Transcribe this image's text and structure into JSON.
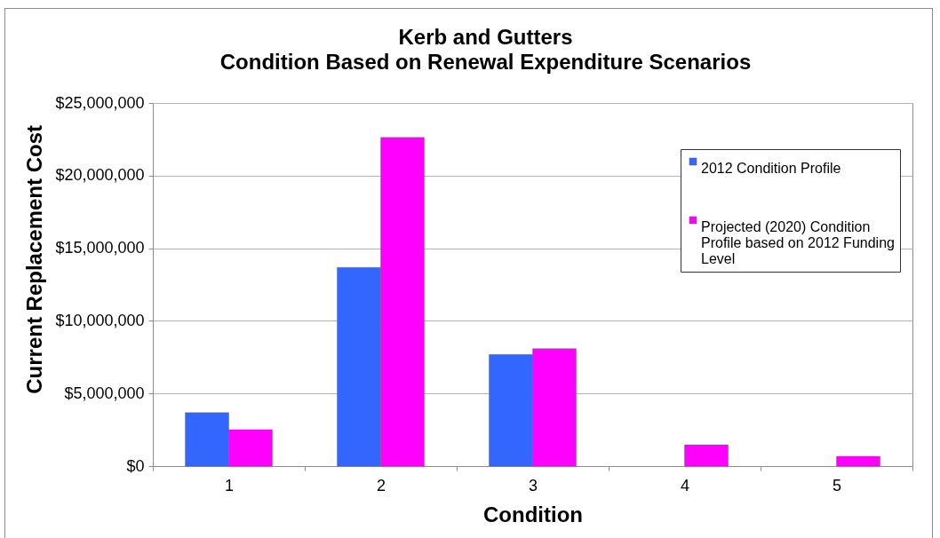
{
  "chart_data": {
    "type": "bar",
    "title": "Kerb and Gutters",
    "subtitle": "Condition Based on Renewal Expenditure Scenarios",
    "xlabel": "Condition",
    "ylabel": "Current Replacement Cost",
    "categories": [
      "1",
      "2",
      "3",
      "4",
      "5"
    ],
    "series": [
      {
        "name": "2012 Condition Profile",
        "color": "#3366ff",
        "values": [
          3680000,
          13680000,
          7680000,
          null,
          null
        ]
      },
      {
        "name": "Projected (2020) Condition Profile based on 2012 Funding Level",
        "color": "#ff00ff",
        "values": [
          2510000,
          22630000,
          8090000,
          1470000,
          670000
        ]
      }
    ],
    "ylim": [
      0,
      25000000
    ],
    "yticks": [
      {
        "value": 0,
        "label": "$0"
      },
      {
        "value": 5000000,
        "label": "$5,000,000"
      },
      {
        "value": 10000000,
        "label": "$10,000,000"
      },
      {
        "value": 15000000,
        "label": "$15,000,000"
      },
      {
        "value": 20000000,
        "label": "$20,000,000"
      },
      {
        "value": 25000000,
        "label": "$25,000,000"
      }
    ],
    "grid": "y",
    "legend": "top right"
  }
}
